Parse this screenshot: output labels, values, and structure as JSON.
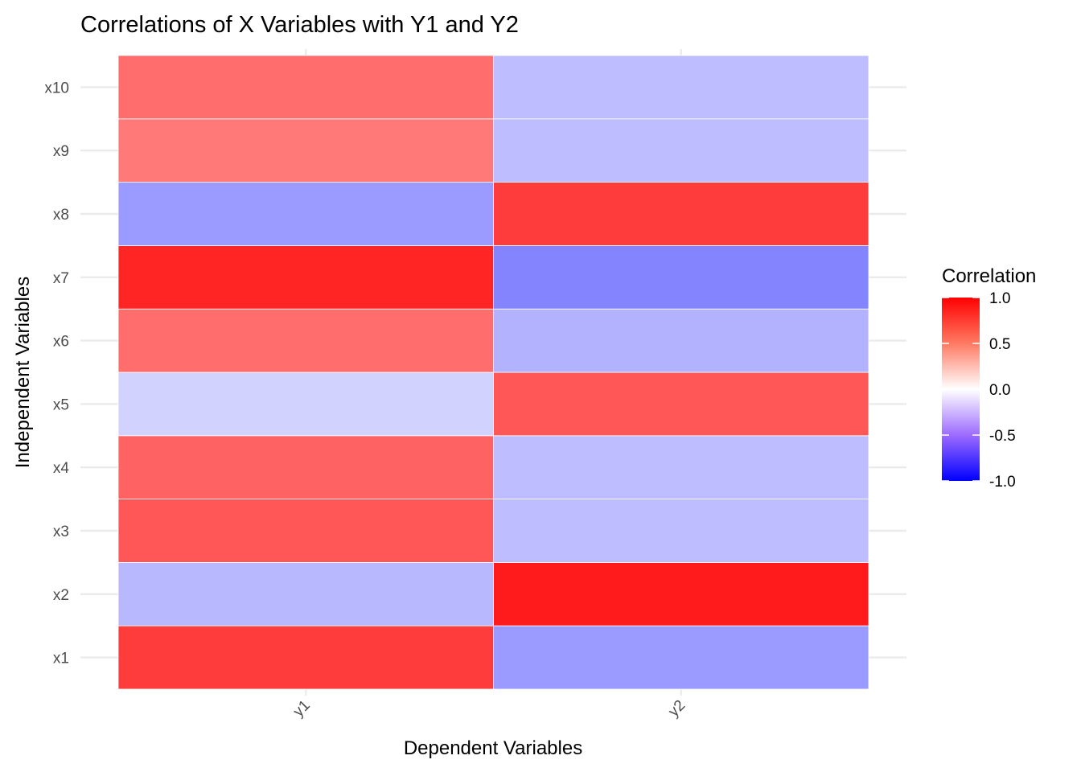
{
  "chart_data": {
    "type": "heatmap",
    "title": "Correlations of X Variables with Y1 and Y2",
    "xlabel": "Dependent Variables",
    "ylabel": "Independent Variables",
    "x_categories": [
      "y1",
      "y2"
    ],
    "y_categories": [
      "x1",
      "x2",
      "x3",
      "x4",
      "x5",
      "x6",
      "x7",
      "x8",
      "x9",
      "x10"
    ],
    "values": [
      [
        0.68,
        -0.6
      ],
      [
        -0.45,
        0.85
      ],
      [
        0.55,
        -0.42
      ],
      [
        0.5,
        -0.42
      ],
      [
        -0.3,
        0.55
      ],
      [
        0.45,
        -0.48
      ],
      [
        0.8,
        -0.7
      ],
      [
        -0.6,
        0.68
      ],
      [
        0.4,
        -0.42
      ],
      [
        0.45,
        -0.42
      ]
    ],
    "legend": {
      "title": "Correlation",
      "position": "right",
      "ticks": [
        "1.0",
        "0.5",
        "0.0",
        "-0.5",
        "-1.0"
      ],
      "tick_values": [
        1.0,
        0.5,
        0.0,
        -0.5,
        -1.0
      ],
      "limits": [
        -1,
        1
      ]
    },
    "colors": {
      "low": "#0000FF",
      "mid": "#FFFFFF",
      "high": "#FF0000"
    },
    "grid": true
  }
}
